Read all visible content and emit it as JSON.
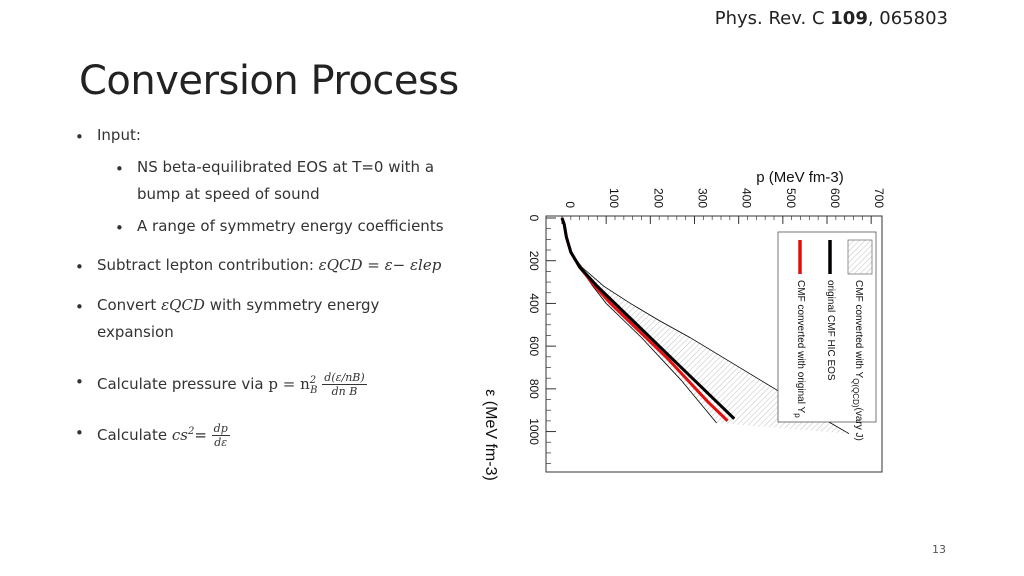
{
  "header": {
    "journal": "Phys. Rev. C",
    "volume": "109",
    "article": ", 065803"
  },
  "slide": {
    "title": "Conversion Process",
    "page_number": "13"
  },
  "bullets": {
    "input": "Input:",
    "sub1_line1": "NS beta-equilibrated EOS at T=0 with a",
    "sub1_line2": "bump at speed of sound",
    "sub2": "A range of symmetry energy coefficients",
    "subtract_text": "Subtract lepton contribution: ",
    "subtract_eq": "εQCD = ε− εlep",
    "convert_pre": "Convert ",
    "convert_sym": "εQCD",
    "convert_post": " with symmetry energy",
    "convert_line2": "expansion",
    "pressure_text": "Calculate pressure via ",
    "pressure_lhs": "p = n",
    "pressure_num": "d(ε/nB)",
    "pressure_den": "dn B",
    "cs_text": "Calculate ",
    "cs_sym": "cs",
    "cs_eq": "=",
    "cs_num": "dp",
    "cs_den": "dε"
  },
  "chart_data": {
    "type": "line",
    "orientation": "rotated-90",
    "x_axis_label": "p (MeV fm-3)",
    "y_axis_label": "ε (MeV fm-3)",
    "x_ticks": [
      "0",
      "100",
      "200",
      "300",
      "400",
      "500",
      "600",
      "700"
    ],
    "y_ticks": [
      "0",
      "200",
      "400",
      "600",
      "800",
      "1000"
    ],
    "xlim": [
      0,
      720
    ],
    "ylim": [
      0,
      1180
    ],
    "legend": {
      "placement": "top-right",
      "band": "CMF converted with Y",
      "band_sub": "Q(QCD)",
      "band_suffix": "(vary J)",
      "black": "original CMF HIC EOS",
      "red": "CMF converted with original Y",
      "red_sub": "p"
    },
    "series": [
      {
        "key": "black",
        "color": "#000000",
        "x": [
          0,
          5,
          10,
          20,
          40,
          80,
          120,
          160,
          200,
          250,
          300,
          350,
          390
        ],
        "y": [
          0,
          30,
          90,
          160,
          230,
          320,
          400,
          480,
          560,
          660,
          760,
          860,
          940
        ]
      },
      {
        "key": "red",
        "color": "#e01010",
        "x": [
          0,
          5,
          10,
          20,
          40,
          75,
          110,
          150,
          190,
          240,
          285,
          330,
          375
        ],
        "y": [
          0,
          30,
          90,
          160,
          230,
          320,
          400,
          480,
          560,
          660,
          760,
          860,
          950
        ]
      },
      {
        "key": "band_lower",
        "color": "#000000",
        "x": [
          0,
          5,
          10,
          20,
          40,
          70,
          100,
          140,
          180,
          225,
          270,
          310,
          350
        ],
        "y": [
          0,
          30,
          90,
          160,
          230,
          320,
          400,
          480,
          560,
          660,
          760,
          860,
          960
        ]
      },
      {
        "key": "band_upper",
        "color": "#000000",
        "x": [
          0,
          5,
          10,
          20,
          45,
          95,
          155,
          220,
          290,
          370,
          450,
          530,
          600,
          650
        ],
        "y": [
          0,
          30,
          90,
          160,
          230,
          320,
          400,
          480,
          560,
          660,
          760,
          860,
          950,
          1010
        ]
      }
    ]
  }
}
